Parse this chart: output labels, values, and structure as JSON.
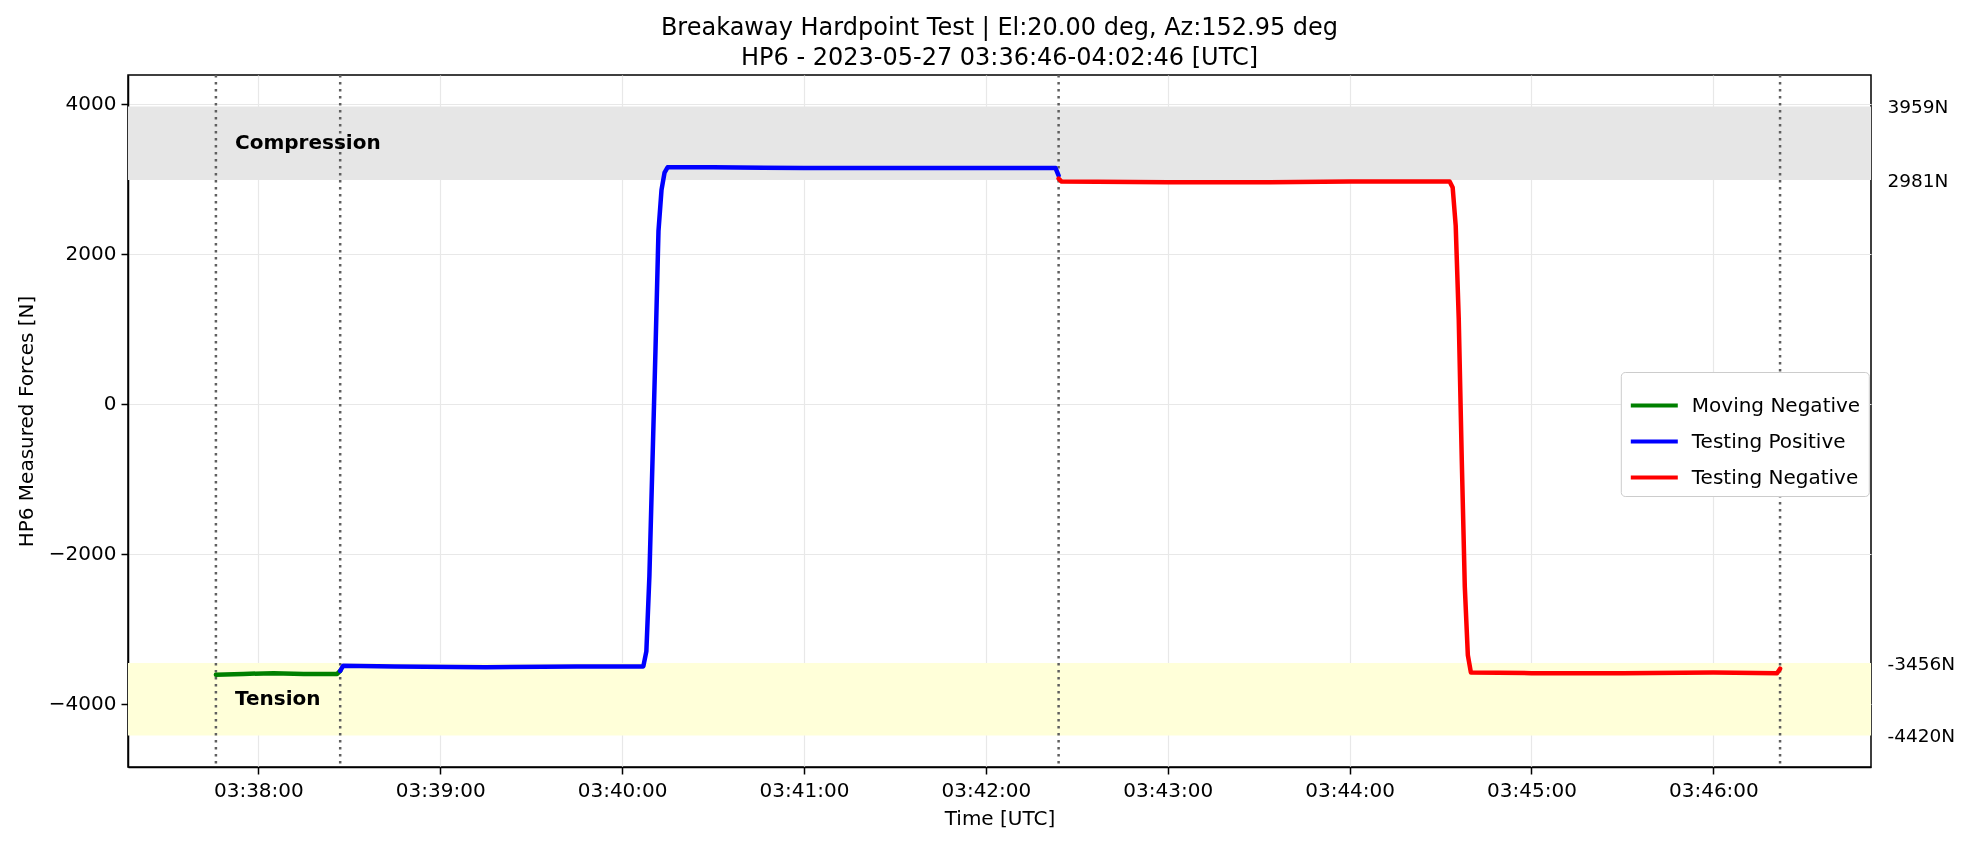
{
  "chart_data": {
    "type": "line",
    "title": "Breakaway Hardpoint Test | El:20.00 deg, Az:152.95 deg",
    "subtitle": "HP6 - 2023-05-27 03:36:46-04:02:46 [UTC]",
    "xlabel": "Time [UTC]",
    "ylabel": "HP6 Measured Forces [N]",
    "xlim": [
      "2023-05-27T03:37:17",
      "2023-05-27T03:46:52"
    ],
    "xticks": [
      {
        "value": "2023-05-27T03:38:00",
        "label": "03:38:00"
      },
      {
        "value": "2023-05-27T03:39:00",
        "label": "03:39:00"
      },
      {
        "value": "2023-05-27T03:40:00",
        "label": "03:40:00"
      },
      {
        "value": "2023-05-27T03:41:00",
        "label": "03:41:00"
      },
      {
        "value": "2023-05-27T03:42:00",
        "label": "03:42:00"
      },
      {
        "value": "2023-05-27T03:43:00",
        "label": "03:43:00"
      },
      {
        "value": "2023-05-27T03:44:00",
        "label": "03:44:00"
      },
      {
        "value": "2023-05-27T03:45:00",
        "label": "03:45:00"
      },
      {
        "value": "2023-05-27T03:46:00",
        "label": "03:46:00"
      }
    ],
    "ylim": [
      -4840,
      4380
    ],
    "yticks": [
      -4000,
      -2000,
      0,
      2000,
      4000
    ],
    "y2lim": [
      -4840,
      4380
    ],
    "y2ticks": [
      {
        "value": -4420,
        "label": "-4420N"
      },
      {
        "value": -3456,
        "label": "-3456N"
      },
      {
        "value": 2981,
        "label": "2981N"
      },
      {
        "value": 3959,
        "label": "3959N"
      }
    ],
    "grid": true,
    "legend": "right",
    "line_style": "solid",
    "bands": [
      {
        "axis": "y",
        "from": 2981,
        "to": 3959,
        "label": "Compression",
        "color": "#e6e6e6"
      },
      {
        "axis": "y",
        "from": -4420,
        "to": -3456,
        "label": "Tension",
        "color": "#ffffd9"
      }
    ],
    "ref_lines": [
      {
        "axis": "x",
        "value": "2023-05-27T03:37:46",
        "color": "#5f5f5f",
        "line_style": "dotted"
      },
      {
        "axis": "x",
        "value": "2023-05-27T03:38:27",
        "color": "#5f5f5f",
        "line_style": "dotted"
      },
      {
        "axis": "x",
        "value": "2023-05-27T03:42:24",
        "color": "#5f5f5f",
        "line_style": "dotted"
      },
      {
        "axis": "x",
        "value": "2023-05-27T03:46:22",
        "color": "#5f5f5f",
        "line_style": "dotted"
      }
    ],
    "series": [
      {
        "name": "Moving Negative",
        "color": "#008000",
        "x": [
          "2023-05-27T03:37:46",
          "2023-05-27T03:37:55",
          "2023-05-27T03:38:05",
          "2023-05-27T03:38:15",
          "2023-05-27T03:38:26",
          "2023-05-27T03:38:27"
        ],
        "values": [
          -3610,
          -3600,
          -3590,
          -3600,
          -3600,
          -3560
        ]
      },
      {
        "name": "Testing Positive",
        "color": "#0000ff",
        "x": [
          "2023-05-27T03:38:27",
          "2023-05-27T03:38:28",
          "2023-05-27T03:38:45",
          "2023-05-27T03:39:15",
          "2023-05-27T03:39:45",
          "2023-05-27T03:40:07",
          "2023-05-27T03:40:08",
          "2023-05-27T03:40:09",
          "2023-05-27T03:40:10",
          "2023-05-27T03:40:11",
          "2023-05-27T03:40:12",
          "2023-05-27T03:40:13",
          "2023-05-27T03:40:14",
          "2023-05-27T03:40:15",
          "2023-05-27T03:40:30",
          "2023-05-27T03:41:00",
          "2023-05-27T03:41:30",
          "2023-05-27T03:42:00",
          "2023-05-27T03:42:23",
          "2023-05-27T03:42:24"
        ],
        "values": [
          -3560,
          -3490,
          -3500,
          -3510,
          -3500,
          -3500,
          -3300,
          -2300,
          -800,
          700,
          2300,
          2850,
          3080,
          3150,
          3150,
          3140,
          3140,
          3140,
          3140,
          3040
        ]
      },
      {
        "name": "Testing Negative",
        "color": "#ff0000",
        "x": [
          "2023-05-27T03:42:24",
          "2023-05-27T03:42:25",
          "2023-05-27T03:43:00",
          "2023-05-27T03:43:30",
          "2023-05-27T03:44:00",
          "2023-05-27T03:44:33",
          "2023-05-27T03:44:34",
          "2023-05-27T03:44:35",
          "2023-05-27T03:44:36",
          "2023-05-27T03:44:37",
          "2023-05-27T03:44:38",
          "2023-05-27T03:44:39",
          "2023-05-27T03:44:40",
          "2023-05-27T03:45:00",
          "2023-05-27T03:45:30",
          "2023-05-27T03:46:00",
          "2023-05-27T03:46:21",
          "2023-05-27T03:46:22"
        ],
        "values": [
          3000,
          2960,
          2950,
          2950,
          2960,
          2960,
          2880,
          2370,
          1130,
          -750,
          -2440,
          -3350,
          -3580,
          -3590,
          -3590,
          -3580,
          -3590,
          -3530
        ]
      }
    ]
  }
}
